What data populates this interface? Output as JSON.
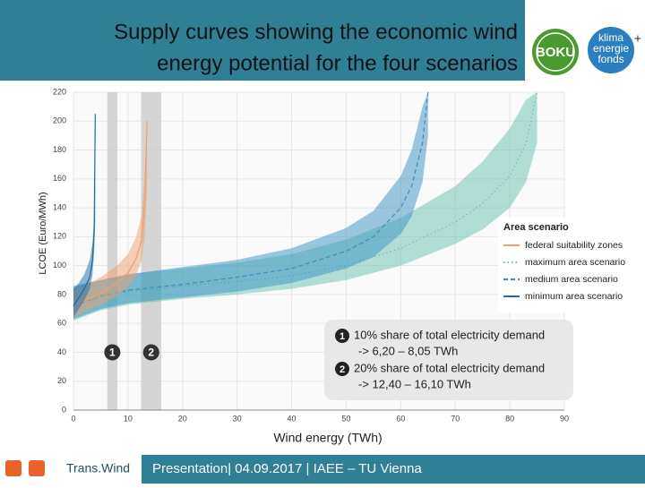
{
  "header": {
    "title_lines": [
      "Supply curves showing the economic wind",
      "energy potential for the four scenarios"
    ]
  },
  "logos": {
    "left": "BOKU",
    "right_lines": [
      "klima",
      "energie",
      "fonds"
    ],
    "plus": "+"
  },
  "chart_data": {
    "type": "band-line",
    "xlabel": "Wind energy (TWh)",
    "ylabel": "LCOE (Euro/MWh)",
    "xlim": [
      0,
      90
    ],
    "ylim": [
      0,
      220
    ],
    "xticks": [
      0,
      10,
      20,
      30,
      40,
      50,
      60,
      70,
      80,
      90
    ],
    "yticks": [
      0,
      20,
      40,
      60,
      80,
      100,
      120,
      140,
      160,
      180,
      200,
      220
    ],
    "grid": true,
    "legend_title": "Area scenario",
    "legend_position": "right",
    "series": [
      {
        "name": "maximum area scenario",
        "color": "#66c2b0",
        "dash": "dotted",
        "x": [
          0,
          5,
          10,
          20,
          30,
          40,
          50,
          60,
          70,
          75,
          80,
          83,
          85
        ],
        "values": [
          72,
          78,
          82,
          86,
          89,
          93,
          100,
          112,
          130,
          143,
          162,
          185,
          220
        ],
        "lower": [
          62,
          69,
          73,
          77,
          80,
          84,
          90,
          100,
          115,
          125,
          140,
          158,
          185
        ],
        "upper": [
          85,
          90,
          94,
          98,
          102,
          108,
          118,
          133,
          155,
          172,
          195,
          215,
          220
        ]
      },
      {
        "name": "medium area scenario",
        "color": "#3a8fc4",
        "dash": "dashed",
        "x": [
          0,
          5,
          10,
          20,
          30,
          40,
          50,
          55,
          60,
          62,
          64,
          65
        ],
        "values": [
          72,
          79,
          83,
          87,
          92,
          98,
          110,
          120,
          140,
          155,
          185,
          220
        ],
        "lower": [
          63,
          70,
          74,
          78,
          82,
          88,
          98,
          106,
          122,
          134,
          158,
          190
        ],
        "upper": [
          86,
          90,
          94,
          99,
          104,
          112,
          126,
          138,
          162,
          180,
          210,
          220
        ]
      },
      {
        "name": "federal suitability zones",
        "color": "#f0a06a",
        "dash": "solid",
        "x": [
          0,
          2,
          5,
          8,
          10,
          11.5,
          12.5,
          13,
          13.5
        ],
        "values": [
          72,
          76,
          81,
          88,
          95,
          105,
          118,
          140,
          200
        ],
        "lower": [
          64,
          68,
          73,
          79,
          85,
          93,
          104,
          118,
          150
        ],
        "upper": [
          82,
          86,
          92,
          100,
          108,
          120,
          135,
          160,
          200
        ]
      },
      {
        "name": "minimum area scenario",
        "color": "#1f6aa8",
        "dash": "solid",
        "x": [
          0,
          1,
          2,
          3,
          3.5,
          3.8,
          4
        ],
        "values": [
          72,
          78,
          84,
          92,
          104,
          125,
          205
        ],
        "lower": [
          64,
          70,
          76,
          84,
          94,
          110,
          130
        ],
        "upper": [
          84,
          88,
          94,
          104,
          116,
          135,
          205
        ]
      }
    ],
    "ranges": [
      {
        "label": "1",
        "xmin": 6.2,
        "xmax": 8.05
      },
      {
        "label": "2",
        "xmin": 12.4,
        "xmax": 16.1
      }
    ],
    "range_marker_y": 40,
    "annotation": [
      {
        "num": "1",
        "lines": [
          "10% share of total electricity demand",
          "->  6,20 – 8,05 TWh"
        ]
      },
      {
        "num": "2",
        "lines": [
          "20% share of total electricity demand",
          "-> 12,40 – 16,10 TWh"
        ]
      }
    ]
  },
  "footer": {
    "brand": "Trans.Wind",
    "text": "Presentation| 04.09.2017 | IAEE – TU Vienna"
  }
}
